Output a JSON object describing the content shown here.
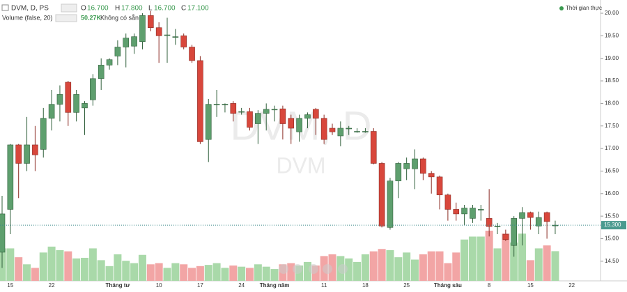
{
  "chart_data": {
    "type": "candlestick",
    "symbol": "DVM, D, PS",
    "watermark": "DVM, D",
    "watermark_sub": "DVM",
    "ohlc_legend": {
      "o_label": "O",
      "o": "16.700",
      "h_label": "H",
      "h": "17.800",
      "l_label": "L",
      "l": "16.700",
      "c_label": "C",
      "c": "17.100"
    },
    "volume_title": "Volume (false, 20)",
    "volume_legend": "50.27K",
    "volume_status": "Không có sẵn",
    "realtime_label": "Thời gian thực",
    "up_color": "#5e9f6e",
    "down_color": "#d8473c",
    "volume_up_color": "#a9d9a9",
    "volume_down_color": "#f2a5a5",
    "categories": [
      null,
      "15",
      null,
      null,
      null,
      null,
      "22",
      null,
      null,
      null,
      null,
      null,
      null,
      null,
      "Tháng tư",
      null,
      null,
      null,
      null,
      "10",
      null,
      null,
      null,
      null,
      "17",
      null,
      null,
      null,
      null,
      "24",
      null,
      null,
      null,
      "Tháng năm",
      null,
      null,
      null,
      null,
      null,
      "11",
      null,
      null,
      null,
      null,
      "18",
      null,
      null,
      null,
      null,
      "25",
      null,
      null,
      null,
      null,
      "Tháng sáu",
      null,
      null,
      null,
      null,
      "8",
      null,
      null,
      null,
      null,
      "15",
      null,
      null,
      null,
      null,
      "22"
    ],
    "open": [
      14.7,
      15.65,
      17.08,
      16.67,
      17.08,
      16.98,
      17.67,
      17.98,
      18.47,
      17.8,
      17.9,
      18.08,
      18.55,
      18.85,
      19.05,
      19.25,
      19.27,
      19.37,
      19.95,
      19.68,
      19.52,
      19.48,
      19.5,
      19.25,
      18.95,
      17.2,
      17.98,
      17.98,
      18.0,
      17.82,
      17.82,
      17.55,
      17.78,
      17.87,
      17.88,
      17.67,
      17.37,
      17.67,
      17.87,
      17.67,
      17.45,
      17.28,
      17.45,
      17.38,
      17.38,
      17.38,
      16.67,
      15.25,
      16.28,
      16.55,
      16.55,
      16.77,
      16.45,
      16.37,
      15.97,
      15.65,
      15.55,
      15.45,
      15.65,
      15.45,
      15.28,
      15.1,
      14.85,
      15.45,
      15.58,
      15.28,
      15.58,
      15.3,
      null,
      null
    ],
    "high": [
      15.95,
      17.1,
      17.1,
      17.7,
      17.5,
      17.9,
      18.3,
      18.4,
      18.5,
      18.3,
      18.05,
      18.65,
      19.0,
      19.0,
      19.4,
      19.55,
      19.55,
      20.0,
      20.05,
      19.8,
      19.9,
      19.65,
      19.55,
      19.3,
      19.05,
      18.1,
      18.3,
      18.0,
      18.05,
      17.9,
      17.9,
      17.85,
      18.0,
      17.95,
      17.95,
      17.75,
      17.75,
      17.8,
      17.9,
      17.75,
      17.55,
      17.6,
      17.5,
      17.45,
      17.45,
      17.45,
      16.7,
      16.35,
      16.7,
      16.8,
      16.98,
      16.8,
      16.5,
      16.4,
      16.0,
      15.8,
      15.75,
      15.75,
      15.75,
      16.1,
      15.35,
      15.2,
      15.5,
      15.7,
      15.6,
      15.6,
      15.6,
      15.4,
      null,
      null
    ],
    "low": [
      14.35,
      15.1,
      15.9,
      16.5,
      16.5,
      16.8,
      17.4,
      17.6,
      17.5,
      17.6,
      17.3,
      17.95,
      18.3,
      18.75,
      18.85,
      18.8,
      19.1,
      19.2,
      19.6,
      18.9,
      18.9,
      19.3,
      19.2,
      18.9,
      17.1,
      16.7,
      17.7,
      17.8,
      17.6,
      17.75,
      17.4,
      17.1,
      17.4,
      17.6,
      17.2,
      17.1,
      17.15,
      17.45,
      17.3,
      17.1,
      17.3,
      17.05,
      17.3,
      17.35,
      17.35,
      16.65,
      15.25,
      15.2,
      15.9,
      16.3,
      16.1,
      16.3,
      16.0,
      15.65,
      15.4,
      15.4,
      15.3,
      15.35,
      15.4,
      15.05,
      15.1,
      14.95,
      14.6,
      14.85,
      15.2,
      15.1,
      15.0,
      15.1,
      null,
      null
    ],
    "close": [
      15.55,
      17.08,
      16.67,
      17.08,
      16.86,
      17.67,
      17.98,
      18.2,
      17.8,
      18.2,
      18.0,
      18.55,
      18.85,
      18.97,
      19.25,
      19.45,
      19.48,
      19.95,
      19.68,
      19.5,
      19.52,
      19.48,
      19.25,
      18.95,
      17.15,
      17.98,
      17.98,
      17.98,
      17.78,
      17.82,
      17.47,
      17.78,
      17.87,
      17.87,
      17.55,
      17.45,
      17.67,
      17.75,
      17.67,
      17.2,
      17.37,
      17.45,
      17.45,
      17.38,
      17.38,
      16.67,
      15.28,
      16.28,
      16.67,
      16.67,
      16.77,
      16.45,
      16.37,
      15.97,
      15.65,
      15.55,
      15.68,
      15.68,
      15.65,
      15.27,
      15.28,
      14.98,
      15.45,
      15.58,
      15.47,
      15.47,
      15.38,
      15.3,
      null,
      null
    ],
    "volume": [
      55,
      55,
      40,
      28,
      22,
      48,
      58,
      52,
      50,
      38,
      39,
      55,
      35,
      25,
      45,
      34,
      30,
      44,
      28,
      30,
      22,
      30,
      28,
      22,
      25,
      27,
      30,
      22,
      26,
      24,
      22,
      28,
      24,
      20,
      28,
      30,
      26,
      32,
      26,
      42,
      45,
      42,
      38,
      32,
      45,
      50,
      54,
      52,
      40,
      48,
      36,
      45,
      50,
      50,
      30,
      48,
      70,
      75,
      75,
      85,
      55,
      80,
      65,
      80,
      35,
      55,
      60,
      50.27,
      null,
      null
    ],
    "ylim": [
      14.2,
      20.3
    ],
    "yticks": [
      {
        "value": 14.5,
        "label": "14.50"
      },
      {
        "value": 15,
        "label": "15.00"
      },
      {
        "value": 15.5,
        "label": "15.50"
      },
      {
        "value": 16,
        "label": "16.00"
      },
      {
        "value": 16.5,
        "label": "16.50"
      },
      {
        "value": 17,
        "label": "17.00"
      },
      {
        "value": 17.5,
        "label": "17.50"
      },
      {
        "value": 18,
        "label": "18.00"
      },
      {
        "value": 18.5,
        "label": "18.50"
      },
      {
        "value": 19,
        "label": "19.00"
      },
      {
        "value": 19.5,
        "label": "19.50"
      },
      {
        "value": 20,
        "label": "20.00"
      }
    ],
    "last_price": {
      "value": 15.3,
      "label": "15.300"
    }
  }
}
